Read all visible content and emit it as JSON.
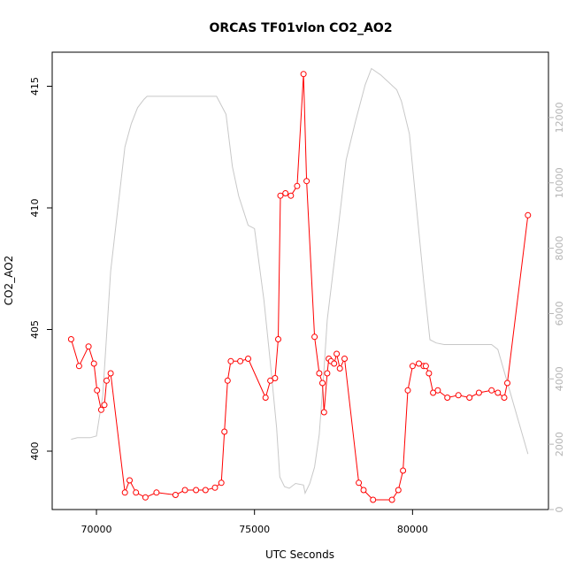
{
  "chart_data": {
    "type": "line",
    "title": "ORCAS TF01vlon CO2_AO2",
    "xlabel": "UTC Seconds",
    "ylabel": "CO2_AO2",
    "y2label": "",
    "xlim": [
      68600,
      84300
    ],
    "ylim": [
      397.6,
      416.4
    ],
    "y2lim": [
      0,
      14000
    ],
    "xticks": [
      70000,
      75000,
      80000
    ],
    "yticks": [
      400,
      405,
      410,
      415
    ],
    "y2ticks": [
      0,
      2000,
      4000,
      6000,
      8000,
      10000,
      12000
    ],
    "grid": false,
    "colors": {
      "primary": "#ff0000",
      "secondary": "#c8c8c8",
      "secondary_ticks": "#b4b4b4",
      "axis": "#000000"
    },
    "series": [
      {
        "axis": "left",
        "style": "line+circle-markers",
        "color": "#ff0000",
        "x": [
          69200,
          69450,
          69750,
          69920,
          70020,
          70150,
          70250,
          70320,
          70450,
          70900,
          71050,
          71250,
          71550,
          71900,
          72500,
          72800,
          73150,
          73450,
          73750,
          73950,
          74050,
          74150,
          74250,
          74550,
          74800,
          75350,
          75500,
          75650,
          75750,
          75820,
          75980,
          76150,
          76350,
          76550,
          76650,
          76900,
          77050,
          77150,
          77200,
          77300,
          77350,
          77420,
          77520,
          77600,
          77700,
          77850,
          78300,
          78450,
          78750,
          79350,
          79550,
          79700,
          79850,
          80000,
          80200,
          80350,
          80420,
          80520,
          80650,
          80800,
          81100,
          81450,
          81800,
          82100,
          82500,
          82700,
          82900,
          83000,
          83650
        ],
        "y": [
          404.6,
          403.5,
          404.3,
          403.6,
          402.5,
          401.7,
          401.9,
          402.9,
          403.2,
          398.3,
          398.8,
          398.3,
          398.1,
          398.3,
          398.2,
          398.4,
          398.4,
          398.4,
          398.5,
          398.7,
          400.8,
          402.9,
          403.7,
          403.7,
          403.8,
          402.2,
          402.9,
          403.0,
          404.6,
          410.5,
          410.6,
          410.5,
          410.9,
          415.5,
          411.1,
          404.7,
          403.2,
          402.8,
          401.6,
          403.2,
          403.8,
          403.7,
          403.6,
          404.0,
          403.4,
          403.8,
          398.7,
          398.4,
          398.0,
          398.0,
          398.4,
          399.2,
          402.5,
          403.5,
          403.6,
          403.5,
          403.5,
          403.2,
          402.4,
          402.5,
          402.2,
          402.3,
          402.2,
          402.4,
          402.5,
          402.4,
          402.2,
          402.8,
          409.7
        ]
      },
      {
        "axis": "right",
        "style": "line",
        "color": "#c8c8c8",
        "x": [
          69200,
          69400,
          69800,
          70000,
          70200,
          70450,
          70700,
          70900,
          71100,
          71300,
          71500,
          71600,
          72000,
          73000,
          73800,
          74100,
          74300,
          74500,
          74800,
          75000,
          75300,
          75500,
          75700,
          75800,
          75950,
          76100,
          76300,
          76550,
          76600,
          76750,
          76900,
          77050,
          77200,
          77300,
          77600,
          77900,
          78200,
          78500,
          78700,
          79000,
          79500,
          79650,
          79900,
          80150,
          80350,
          80550,
          80750,
          81000,
          82000,
          82500,
          82700,
          83650
        ],
        "y": [
          2150,
          2200,
          2200,
          2250,
          3500,
          7300,
          9400,
          11100,
          11800,
          12300,
          12550,
          12650,
          12650,
          12650,
          12650,
          12100,
          10500,
          9600,
          8700,
          8600,
          6400,
          4500,
          2500,
          1000,
          700,
          650,
          800,
          750,
          500,
          800,
          1300,
          2300,
          4300,
          5800,
          8200,
          10700,
          11900,
          13000,
          13500,
          13300,
          12850,
          12500,
          11500,
          9000,
          7000,
          5200,
          5100,
          5050,
          5050,
          5050,
          4900,
          1700
        ]
      }
    ]
  }
}
